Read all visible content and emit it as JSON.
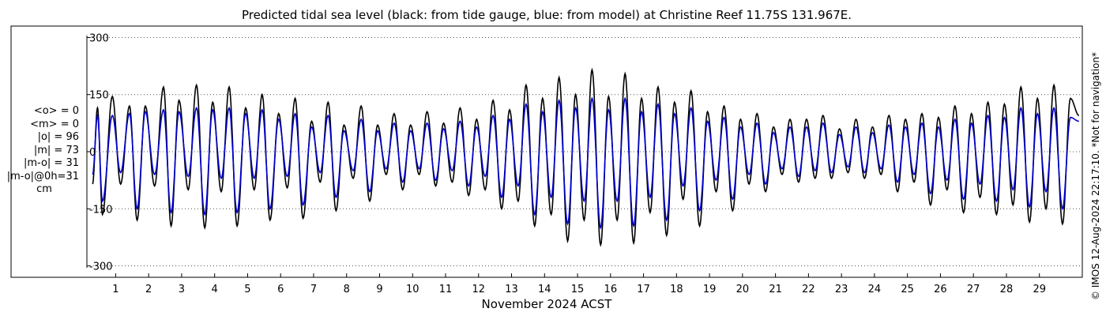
{
  "title": "Predicted tidal sea level (black: from tide gauge, blue: from model) at Christine Reef 11.75S 131.967E.",
  "stats": [
    "<o> = 0",
    "<m> = 0",
    "|o| = 96",
    "|m| = 73",
    "|m-o| = 31",
    "|m-o|@0h=31"
  ],
  "stats_unit": "cm",
  "credit": "© IMOS 12-Aug-2024 22:17:10. *Not for navigation*",
  "colors": {
    "observed": "#000000",
    "model": "#0000cc",
    "grid": "#555555"
  },
  "chart_data": {
    "type": "line",
    "title": "Predicted tidal sea level (black: from tide gauge, blue: from model) at Christine Reef 11.75S 131.967E.",
    "xlabel": "November 2024 ACST",
    "ylabel": "",
    "xlim": [
      0.2,
      30.3
    ],
    "ylim": [
      -330,
      330
    ],
    "x_ticks": [
      1,
      2,
      3,
      4,
      5,
      6,
      7,
      8,
      9,
      10,
      11,
      12,
      13,
      14,
      15,
      16,
      17,
      18,
      19,
      20,
      21,
      22,
      23,
      24,
      25,
      26,
      27,
      28,
      29
    ],
    "y_ticks": [
      300,
      150,
      0,
      -150,
      -300
    ],
    "y_tick_labels": [
      "300",
      "150",
      "0",
      "-150",
      "-300"
    ],
    "grid": "horizontal dotted",
    "series": [
      {
        "name": "from tide gauge",
        "color": "#000000",
        "x": [
          0.3,
          0.45,
          0.6,
          0.9,
          1.15,
          1.42,
          1.65,
          1.9,
          2.18,
          2.45,
          2.68,
          2.92,
          3.2,
          3.45,
          3.7,
          3.94,
          4.2,
          4.44,
          4.68,
          4.94,
          5.2,
          5.44,
          5.68,
          5.94,
          6.2,
          6.44,
          6.68,
          6.94,
          7.2,
          7.44,
          7.68,
          7.92,
          8.2,
          8.44,
          8.7,
          8.94,
          9.2,
          9.44,
          9.7,
          9.94,
          10.2,
          10.44,
          10.7,
          10.94,
          11.2,
          11.44,
          11.7,
          11.94,
          12.2,
          12.44,
          12.7,
          12.94,
          13.2,
          13.44,
          13.7,
          13.94,
          14.2,
          14.44,
          14.7,
          14.94,
          15.2,
          15.44,
          15.7,
          15.94,
          16.2,
          16.44,
          16.7,
          16.94,
          17.2,
          17.44,
          17.7,
          17.94,
          18.2,
          18.44,
          18.7,
          18.94,
          19.2,
          19.44,
          19.7,
          19.94,
          20.2,
          20.44,
          20.7,
          20.94,
          21.2,
          21.44,
          21.7,
          21.94,
          22.2,
          22.44,
          22.7,
          22.94,
          23.2,
          23.44,
          23.7,
          23.94,
          24.2,
          24.44,
          24.7,
          24.94,
          25.2,
          25.44,
          25.7,
          25.94,
          26.2,
          26.44,
          26.7,
          26.94,
          27.2,
          27.44,
          27.7,
          27.94,
          28.2,
          28.44,
          28.7,
          28.94,
          29.2,
          29.44,
          29.7,
          29.94,
          30.2
        ],
        "values": [
          -85,
          115,
          -165,
          145,
          -85,
          120,
          -180,
          120,
          -90,
          170,
          -195,
          135,
          -100,
          175,
          -200,
          130,
          -105,
          170,
          -195,
          115,
          -100,
          150,
          -180,
          100,
          -95,
          140,
          -175,
          80,
          -80,
          130,
          -155,
          70,
          -70,
          120,
          -130,
          70,
          -60,
          100,
          -100,
          70,
          -60,
          105,
          -90,
          75,
          -80,
          115,
          -115,
          85,
          -100,
          135,
          -150,
          110,
          -130,
          175,
          -195,
          140,
          -165,
          195,
          -235,
          150,
          -180,
          215,
          -245,
          145,
          -180,
          205,
          -240,
          140,
          -160,
          170,
          -220,
          130,
          -125,
          160,
          -195,
          105,
          -105,
          120,
          -155,
          85,
          -85,
          100,
          -105,
          65,
          -60,
          85,
          -80,
          85,
          -70,
          95,
          -70,
          60,
          -55,
          85,
          -70,
          65,
          -60,
          95,
          -105,
          85,
          -80,
          100,
          -140,
          90,
          -100,
          120,
          -160,
          100,
          -120,
          130,
          -165,
          125,
          -140,
          170,
          -185,
          140,
          -150,
          175,
          -190,
          140,
          95
        ]
      },
      {
        "name": "from model",
        "color": "#0000cc",
        "x": [
          0.3,
          0.45,
          0.6,
          0.9,
          1.15,
          1.42,
          1.65,
          1.9,
          2.18,
          2.45,
          2.68,
          2.92,
          3.2,
          3.45,
          3.7,
          3.94,
          4.2,
          4.44,
          4.68,
          4.94,
          5.2,
          5.44,
          5.68,
          5.94,
          6.2,
          6.44,
          6.68,
          6.94,
          7.2,
          7.44,
          7.68,
          7.92,
          8.2,
          8.44,
          8.7,
          8.94,
          9.2,
          9.44,
          9.7,
          9.94,
          10.2,
          10.44,
          10.7,
          10.94,
          11.2,
          11.44,
          11.7,
          11.94,
          12.2,
          12.44,
          12.7,
          12.94,
          13.2,
          13.44,
          13.7,
          13.94,
          14.2,
          14.44,
          14.7,
          14.94,
          15.2,
          15.44,
          15.7,
          15.94,
          16.2,
          16.44,
          16.7,
          16.94,
          17.2,
          17.44,
          17.7,
          17.94,
          18.2,
          18.44,
          18.7,
          18.94,
          19.2,
          19.44,
          19.7,
          19.94,
          20.2,
          20.44,
          20.7,
          20.94,
          21.2,
          21.44,
          21.7,
          21.94,
          22.2,
          22.44,
          22.7,
          22.94,
          23.2,
          23.44,
          23.7,
          23.94,
          24.2,
          24.44,
          24.7,
          24.94,
          25.2,
          25.44,
          25.7,
          25.94,
          26.2,
          26.44,
          26.7,
          26.94,
          27.2,
          27.44,
          27.7,
          27.94,
          28.2,
          28.44,
          28.7,
          28.94,
          29.2,
          29.44,
          29.7,
          29.94,
          30.2
        ],
        "values": [
          -60,
          95,
          -130,
          95,
          -55,
          100,
          -150,
          105,
          -60,
          110,
          -160,
          105,
          -65,
          115,
          -165,
          110,
          -70,
          115,
          -160,
          100,
          -70,
          110,
          -150,
          85,
          -65,
          100,
          -140,
          65,
          -55,
          95,
          -120,
          55,
          -50,
          85,
          -105,
          55,
          -45,
          75,
          -80,
          55,
          -45,
          75,
          -75,
          60,
          -50,
          80,
          -90,
          65,
          -65,
          95,
          -120,
          85,
          -90,
          125,
          -165,
          105,
          -120,
          135,
          -190,
          115,
          -130,
          140,
          -200,
          110,
          -130,
          140,
          -195,
          105,
          -120,
          125,
          -180,
          100,
          -90,
          115,
          -155,
          80,
          -75,
          90,
          -125,
          65,
          -60,
          75,
          -85,
          50,
          -45,
          65,
          -65,
          65,
          -50,
          75,
          -55,
          45,
          -40,
          65,
          -55,
          50,
          -45,
          70,
          -80,
          65,
          -60,
          75,
          -110,
          65,
          -75,
          85,
          -125,
          75,
          -85,
          95,
          -130,
          90,
          -100,
          115,
          -145,
          100,
          -105,
          115,
          -150,
          90,
          80
        ]
      }
    ]
  }
}
